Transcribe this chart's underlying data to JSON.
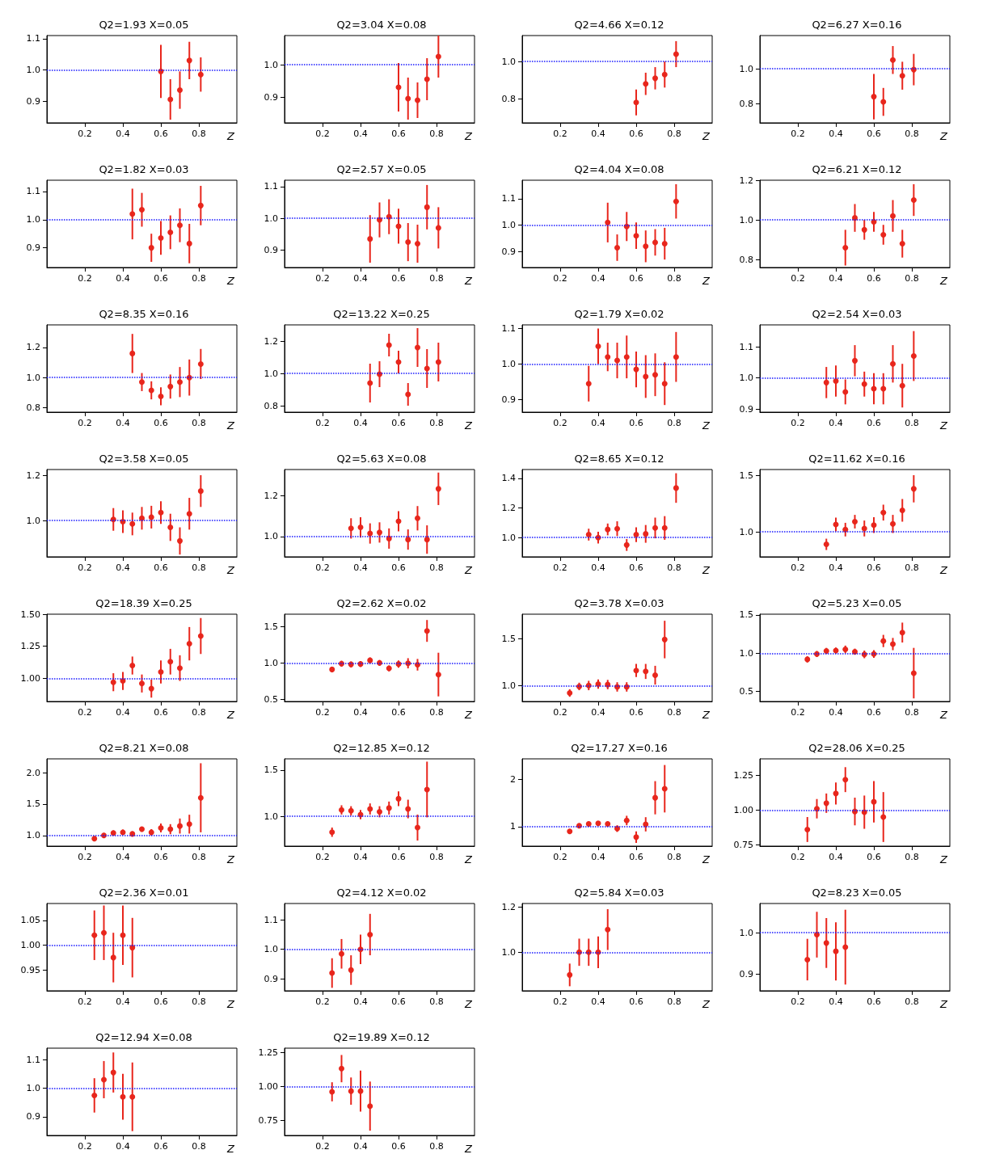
{
  "chart_data": [
    {
      "type": "scatter",
      "title": "Q2=1.93 X=0.05",
      "xlabel": "Z",
      "x": [
        0.6,
        0.65,
        0.7,
        0.75,
        0.81
      ],
      "values": [
        0.995,
        0.905,
        0.935,
        1.03,
        0.985
      ],
      "errors": [
        0.085,
        0.065,
        0.06,
        0.06,
        0.055
      ],
      "color": "#e8261c",
      "marker": "circle",
      "xlim": [
        0,
        1
      ],
      "xticks": [
        0.2,
        0.4,
        0.6,
        0.8
      ],
      "ylim": [
        0.83,
        1.11
      ],
      "yticks": [
        0.9,
        {
          "value": 1,
          "label": "1.0"
        },
        1.1
      ],
      "ref_lines": [
        {
          "axis": "y",
          "value": 1,
          "color": "#1a1aff",
          "line_style": "dotted"
        }
      ]
    },
    {
      "type": "scatter",
      "title": "Q2=3.04 X=0.08",
      "xlabel": "Z",
      "x": [
        0.6,
        0.65,
        0.7,
        0.75,
        0.81
      ],
      "values": [
        0.93,
        0.895,
        0.89,
        0.955,
        1.025
      ],
      "errors": [
        0.075,
        0.065,
        0.055,
        0.065,
        0.065
      ],
      "color": "#e8261c",
      "marker": "circle",
      "xlim": [
        0,
        1
      ],
      "xticks": [
        0.2,
        0.4,
        0.6,
        0.8
      ],
      "ylim": [
        0.82,
        1.09
      ],
      "yticks": [
        0.9,
        {
          "value": 1,
          "label": "1.0"
        }
      ],
      "ref_lines": [
        {
          "axis": "y",
          "value": 1,
          "color": "#1a1aff",
          "line_style": "dotted"
        }
      ]
    },
    {
      "type": "scatter",
      "title": "Q2=4.66 X=0.12",
      "xlabel": "Z",
      "x": [
        0.6,
        0.65,
        0.7,
        0.75,
        0.81
      ],
      "values": [
        0.78,
        0.88,
        0.91,
        0.93,
        1.04
      ],
      "errors": [
        0.07,
        0.06,
        0.06,
        0.07,
        0.07
      ],
      "color": "#e8261c",
      "marker": "circle",
      "xlim": [
        0,
        1
      ],
      "xticks": [
        0.2,
        0.4,
        0.6,
        0.8
      ],
      "ylim": [
        0.67,
        1.14
      ],
      "yticks": [
        0.8,
        {
          "value": 1,
          "label": "1.0"
        }
      ],
      "ref_lines": [
        {
          "axis": "y",
          "value": 1,
          "color": "#1a1aff",
          "line_style": "dotted"
        }
      ]
    },
    {
      "type": "scatter",
      "title": "Q2=6.27 X=0.16",
      "xlabel": "Z",
      "x": [
        0.6,
        0.65,
        0.7,
        0.75,
        0.81
      ],
      "values": [
        0.84,
        0.81,
        1.05,
        0.96,
        0.995
      ],
      "errors": [
        0.13,
        0.08,
        0.08,
        0.08,
        0.09
      ],
      "color": "#e8261c",
      "marker": "circle",
      "xlim": [
        0,
        1
      ],
      "xticks": [
        0.2,
        0.4,
        0.6,
        0.8
      ],
      "ylim": [
        0.69,
        1.19
      ],
      "yticks": [
        0.8,
        {
          "value": 1,
          "label": "1.0"
        }
      ],
      "ref_lines": [
        {
          "axis": "y",
          "value": 1,
          "color": "#1a1aff",
          "line_style": "dotted"
        }
      ]
    },
    {
      "type": "scatter",
      "title": "Q2=1.82 X=0.03",
      "xlabel": "Z",
      "x": [
        0.45,
        0.5,
        0.55,
        0.6,
        0.65,
        0.7,
        0.75,
        0.81
      ],
      "values": [
        1.02,
        1.035,
        0.9,
        0.935,
        0.955,
        0.98,
        0.915,
        1.05
      ],
      "errors": [
        0.09,
        0.06,
        0.05,
        0.06,
        0.06,
        0.06,
        0.07,
        0.07
      ],
      "color": "#e8261c",
      "marker": "circle",
      "xlim": [
        0,
        1
      ],
      "xticks": [
        0.2,
        0.4,
        0.6,
        0.8
      ],
      "ylim": [
        0.83,
        1.14
      ],
      "yticks": [
        0.9,
        {
          "value": 1,
          "label": "1.0"
        },
        1.1
      ],
      "ref_lines": [
        {
          "axis": "y",
          "value": 1,
          "color": "#1a1aff",
          "line_style": "dotted"
        }
      ]
    },
    {
      "type": "scatter",
      "title": "Q2=2.57 X=0.05",
      "xlabel": "Z",
      "x": [
        0.45,
        0.5,
        0.55,
        0.6,
        0.65,
        0.7,
        0.75,
        0.81
      ],
      "values": [
        0.935,
        0.995,
        1.005,
        0.975,
        0.925,
        0.92,
        1.035,
        0.97
      ],
      "errors": [
        0.075,
        0.055,
        0.055,
        0.055,
        0.06,
        0.06,
        0.07,
        0.065
      ],
      "color": "#e8261c",
      "marker": "circle",
      "xlim": [
        0,
        1
      ],
      "xticks": [
        0.2,
        0.4,
        0.6,
        0.8
      ],
      "ylim": [
        0.845,
        1.12
      ],
      "yticks": [
        0.9,
        {
          "value": 1,
          "label": "1.0"
        },
        1.1
      ],
      "ref_lines": [
        {
          "axis": "y",
          "value": 1,
          "color": "#1a1aff",
          "line_style": "dotted"
        }
      ]
    },
    {
      "type": "scatter",
      "title": "Q2=4.04 X=0.08",
      "xlabel": "Z",
      "x": [
        0.45,
        0.5,
        0.55,
        0.6,
        0.65,
        0.7,
        0.75,
        0.81
      ],
      "values": [
        1.01,
        0.915,
        0.995,
        0.96,
        0.92,
        0.935,
        0.93,
        1.09
      ],
      "errors": [
        0.075,
        0.05,
        0.055,
        0.05,
        0.06,
        0.05,
        0.06,
        0.065
      ],
      "color": "#e8261c",
      "marker": "circle",
      "xlim": [
        0,
        1
      ],
      "xticks": [
        0.2,
        0.4,
        0.6,
        0.8
      ],
      "ylim": [
        0.84,
        1.17
      ],
      "yticks": [
        0.9,
        {
          "value": 1,
          "label": "1.0"
        },
        1.1
      ],
      "ref_lines": [
        {
          "axis": "y",
          "value": 1,
          "color": "#1a1aff",
          "line_style": "dotted"
        }
      ]
    },
    {
      "type": "scatter",
      "title": "Q2=6.21 X=0.12",
      "xlabel": "Z",
      "x": [
        0.45,
        0.5,
        0.55,
        0.6,
        0.65,
        0.7,
        0.75,
        0.81
      ],
      "values": [
        0.86,
        1.01,
        0.95,
        0.99,
        0.925,
        1.02,
        0.88,
        1.1
      ],
      "errors": [
        0.09,
        0.07,
        0.05,
        0.05,
        0.05,
        0.08,
        0.07,
        0.08
      ],
      "color": "#e8261c",
      "marker": "circle",
      "xlim": [
        0,
        1
      ],
      "xticks": [
        0.2,
        0.4,
        0.6,
        0.8
      ],
      "ylim": [
        0.76,
        1.2
      ],
      "yticks": [
        0.8,
        {
          "value": 1,
          "label": "1.0"
        },
        1.2
      ],
      "ref_lines": [
        {
          "axis": "y",
          "value": 1,
          "color": "#1a1aff",
          "line_style": "dotted"
        }
      ]
    },
    {
      "type": "scatter",
      "title": "Q2=8.35 X=0.16",
      "xlabel": "Z",
      "x": [
        0.45,
        0.5,
        0.55,
        0.6,
        0.65,
        0.7,
        0.75,
        0.81
      ],
      "values": [
        1.16,
        0.97,
        0.915,
        0.875,
        0.94,
        0.97,
        1.0,
        1.09
      ],
      "errors": [
        0.13,
        0.06,
        0.06,
        0.06,
        0.08,
        0.1,
        0.12,
        0.1
      ],
      "color": "#e8261c",
      "marker": "circle",
      "xlim": [
        0,
        1
      ],
      "xticks": [
        0.2,
        0.4,
        0.6,
        0.8
      ],
      "ylim": [
        0.77,
        1.35
      ],
      "yticks": [
        0.8,
        {
          "value": 1,
          "label": "1.0"
        },
        1.2
      ],
      "ref_lines": [
        {
          "axis": "y",
          "value": 1,
          "color": "#1a1aff",
          "line_style": "dotted"
        }
      ]
    },
    {
      "type": "scatter",
      "title": "Q2=13.22 X=0.25",
      "xlabel": "Z",
      "x": [
        0.45,
        0.5,
        0.55,
        0.6,
        0.65,
        0.7,
        0.75,
        0.81
      ],
      "values": [
        0.94,
        0.995,
        1.175,
        1.07,
        0.87,
        1.16,
        1.03,
        1.07
      ],
      "errors": [
        0.12,
        0.08,
        0.07,
        0.07,
        0.07,
        0.12,
        0.12,
        0.12
      ],
      "color": "#e8261c",
      "marker": "circle",
      "xlim": [
        0,
        1
      ],
      "xticks": [
        0.2,
        0.4,
        0.6,
        0.8
      ],
      "ylim": [
        0.76,
        1.3
      ],
      "yticks": [
        0.8,
        {
          "value": 1,
          "label": "1.0"
        },
        1.2
      ],
      "ref_lines": [
        {
          "axis": "y",
          "value": 1,
          "color": "#1a1aff",
          "line_style": "dotted"
        }
      ]
    },
    {
      "type": "scatter",
      "title": "Q2=1.79 X=0.02",
      "xlabel": "Z",
      "x": [
        0.35,
        0.4,
        0.45,
        0.5,
        0.55,
        0.6,
        0.65,
        0.7,
        0.75,
        0.81
      ],
      "values": [
        0.945,
        1.05,
        1.02,
        1.01,
        1.02,
        0.985,
        0.965,
        0.97,
        0.945,
        1.02
      ],
      "errors": [
        0.05,
        0.05,
        0.04,
        0.05,
        0.06,
        0.05,
        0.06,
        0.06,
        0.06,
        0.07
      ],
      "color": "#e8261c",
      "marker": "circle",
      "xlim": [
        0,
        1
      ],
      "xticks": [
        0.2,
        0.4,
        0.6,
        0.8
      ],
      "ylim": [
        0.865,
        1.11
      ],
      "yticks": [
        0.9,
        {
          "value": 1,
          "label": "1.0"
        },
        1.1
      ],
      "ref_lines": [
        {
          "axis": "y",
          "value": 1,
          "color": "#1a1aff",
          "line_style": "dotted"
        }
      ]
    },
    {
      "type": "scatter",
      "title": "Q2=2.54 X=0.03",
      "xlabel": "Z",
      "x": [
        0.35,
        0.4,
        0.45,
        0.5,
        0.55,
        0.6,
        0.65,
        0.7,
        0.75,
        0.81
      ],
      "values": [
        0.985,
        0.99,
        0.955,
        1.055,
        0.98,
        0.965,
        0.965,
        1.045,
        0.975,
        1.07
      ],
      "errors": [
        0.05,
        0.05,
        0.04,
        0.05,
        0.04,
        0.05,
        0.05,
        0.06,
        0.07,
        0.08
      ],
      "color": "#e8261c",
      "marker": "circle",
      "xlim": [
        0,
        1
      ],
      "xticks": [
        0.2,
        0.4,
        0.6,
        0.8
      ],
      "ylim": [
        0.89,
        1.17
      ],
      "yticks": [
        0.9,
        {
          "value": 1,
          "label": "1.0"
        },
        1.1
      ],
      "ref_lines": [
        {
          "axis": "y",
          "value": 1,
          "color": "#1a1aff",
          "line_style": "dotted"
        }
      ]
    },
    {
      "type": "scatter",
      "title": "Q2=3.58 X=0.05",
      "xlabel": "Z",
      "x": [
        0.35,
        0.4,
        0.45,
        0.5,
        0.55,
        0.6,
        0.65,
        0.7,
        0.75,
        0.81
      ],
      "values": [
        1.005,
        0.995,
        0.985,
        1.01,
        1.015,
        1.035,
        0.97,
        0.91,
        1.03,
        1.13
      ],
      "errors": [
        0.05,
        0.05,
        0.05,
        0.05,
        0.05,
        0.05,
        0.06,
        0.06,
        0.07,
        0.07
      ],
      "color": "#e8261c",
      "marker": "circle",
      "xlim": [
        0,
        1
      ],
      "xticks": [
        0.2,
        0.4,
        0.6,
        0.8
      ],
      "ylim": [
        0.84,
        1.225
      ],
      "yticks": [
        {
          "value": 1,
          "label": "1.0"
        },
        1.2
      ],
      "ref_lines": [
        {
          "axis": "y",
          "value": 1,
          "color": "#1a1aff",
          "line_style": "dotted"
        }
      ]
    },
    {
      "type": "scatter",
      "title": "Q2=5.63 X=0.08",
      "xlabel": "Z",
      "x": [
        0.35,
        0.4,
        0.45,
        0.5,
        0.55,
        0.6,
        0.65,
        0.7,
        0.75,
        0.81
      ],
      "values": [
        1.04,
        1.045,
        1.015,
        1.02,
        0.99,
        1.075,
        0.985,
        1.09,
        0.985,
        1.235
      ],
      "errors": [
        0.05,
        0.05,
        0.05,
        0.05,
        0.05,
        0.05,
        0.05,
        0.06,
        0.07,
        0.08
      ],
      "color": "#e8261c",
      "marker": "circle",
      "xlim": [
        0,
        1
      ],
      "xticks": [
        0.2,
        0.4,
        0.6,
        0.8
      ],
      "ylim": [
        0.9,
        1.33
      ],
      "yticks": [
        {
          "value": 1,
          "label": "1.0"
        },
        1.2
      ],
      "ref_lines": [
        {
          "axis": "y",
          "value": 1,
          "color": "#1a1aff",
          "line_style": "dotted"
        }
      ]
    },
    {
      "type": "scatter",
      "title": "Q2=8.65 X=0.12",
      "xlabel": "Z",
      "x": [
        0.35,
        0.4,
        0.45,
        0.5,
        0.55,
        0.6,
        0.65,
        0.7,
        0.75,
        0.81
      ],
      "values": [
        1.02,
        1.0,
        1.055,
        1.06,
        0.95,
        1.02,
        1.025,
        1.065,
        1.065,
        1.335
      ],
      "errors": [
        0.04,
        0.04,
        0.04,
        0.05,
        0.04,
        0.05,
        0.06,
        0.07,
        0.08,
        0.1
      ],
      "color": "#e8261c",
      "marker": "circle",
      "xlim": [
        0,
        1
      ],
      "xticks": [
        0.2,
        0.4,
        0.6,
        0.8
      ],
      "ylim": [
        0.87,
        1.46
      ],
      "yticks": [
        {
          "value": 1,
          "label": "1.0"
        },
        1.2,
        1.4
      ],
      "ref_lines": [
        {
          "axis": "y",
          "value": 1,
          "color": "#1a1aff",
          "line_style": "dotted"
        }
      ]
    },
    {
      "type": "scatter",
      "title": "Q2=11.62 X=0.16",
      "xlabel": "Z",
      "x": [
        0.35,
        0.4,
        0.45,
        0.5,
        0.55,
        0.6,
        0.65,
        0.7,
        0.75,
        0.81
      ],
      "values": [
        0.89,
        1.065,
        1.02,
        1.09,
        1.03,
        1.06,
        1.17,
        1.07,
        1.19,
        1.38
      ],
      "errors": [
        0.05,
        0.06,
        0.06,
        0.06,
        0.07,
        0.07,
        0.07,
        0.08,
        0.1,
        0.12
      ],
      "color": "#e8261c",
      "marker": "circle",
      "xlim": [
        0,
        1
      ],
      "xticks": [
        0.2,
        0.4,
        0.6,
        0.8
      ],
      "ylim": [
        0.78,
        1.55
      ],
      "yticks": [
        {
          "value": 1,
          "label": "1.0"
        },
        1.5
      ],
      "ref_lines": [
        {
          "axis": "y",
          "value": 1,
          "color": "#1a1aff",
          "line_style": "dotted"
        }
      ]
    },
    {
      "type": "scatter",
      "title": "Q2=18.39 X=0.25",
      "xlabel": "Z",
      "x": [
        0.35,
        0.4,
        0.45,
        0.5,
        0.55,
        0.6,
        0.65,
        0.7,
        0.75,
        0.81
      ],
      "values": [
        0.97,
        0.98,
        1.1,
        0.96,
        0.92,
        1.05,
        1.13,
        1.08,
        1.27,
        1.33
      ],
      "errors": [
        0.07,
        0.07,
        0.07,
        0.07,
        0.07,
        0.09,
        0.1,
        0.1,
        0.13,
        0.14
      ],
      "color": "#e8261c",
      "marker": "circle",
      "xlim": [
        0,
        1
      ],
      "xticks": [
        0.2,
        0.4,
        0.6,
        0.8
      ],
      "ylim": [
        0.82,
        1.5
      ],
      "yticks": [
        {
          "value": 1,
          "label": "1.00"
        },
        1.25,
        {
          "value": 1.5,
          "label": "1.50"
        }
      ],
      "ref_lines": [
        {
          "axis": "y",
          "value": 1,
          "color": "#1a1aff",
          "line_style": "dotted"
        }
      ]
    },
    {
      "type": "scatter",
      "title": "Q2=2.62 X=0.02",
      "xlabel": "Z",
      "x": [
        0.25,
        0.3,
        0.35,
        0.4,
        0.45,
        0.5,
        0.55,
        0.6,
        0.65,
        0.7,
        0.75,
        0.81
      ],
      "values": [
        0.91,
        0.99,
        0.98,
        0.985,
        1.035,
        1.0,
        0.925,
        0.985,
        0.995,
        0.975,
        1.44,
        0.84
      ],
      "errors": [
        0.03,
        0.04,
        0.04,
        0.04,
        0.04,
        0.04,
        0.04,
        0.05,
        0.07,
        0.08,
        0.15,
        0.3
      ],
      "color": "#e8261c",
      "marker": "circle",
      "xlim": [
        0,
        1
      ],
      "xticks": [
        0.2,
        0.4,
        0.6,
        0.8
      ],
      "ylim": [
        0.47,
        1.67
      ],
      "yticks": [
        0.5,
        {
          "value": 1,
          "label": "1.0"
        },
        1.5
      ],
      "ref_lines": [
        {
          "axis": "y",
          "value": 1,
          "color": "#1a1aff",
          "line_style": "dotted"
        }
      ]
    },
    {
      "type": "scatter",
      "title": "Q2=3.78 X=0.03",
      "xlabel": "Z",
      "x": [
        0.25,
        0.3,
        0.35,
        0.4,
        0.45,
        0.5,
        0.55,
        0.6,
        0.65,
        0.7,
        0.75
      ],
      "values": [
        0.92,
        0.99,
        1.0,
        1.015,
        1.01,
        0.985,
        0.985,
        1.16,
        1.15,
        1.11,
        1.49
      ],
      "errors": [
        0.04,
        0.04,
        0.05,
        0.05,
        0.05,
        0.05,
        0.05,
        0.07,
        0.08,
        0.1,
        0.2
      ],
      "color": "#e8261c",
      "marker": "circle",
      "xlim": [
        0,
        1
      ],
      "xticks": [
        0.2,
        0.4,
        0.6,
        0.8
      ],
      "ylim": [
        0.83,
        1.76
      ],
      "yticks": [
        {
          "value": 1,
          "label": "1.0"
        },
        1.5
      ],
      "ref_lines": [
        {
          "axis": "y",
          "value": 1,
          "color": "#1a1aff",
          "line_style": "dotted"
        }
      ]
    },
    {
      "type": "scatter",
      "title": "Q2=5.23 X=0.05",
      "xlabel": "Z",
      "x": [
        0.25,
        0.3,
        0.35,
        0.4,
        0.45,
        0.5,
        0.55,
        0.6,
        0.65,
        0.7,
        0.75,
        0.81
      ],
      "values": [
        0.92,
        0.99,
        1.03,
        1.035,
        1.05,
        1.02,
        0.985,
        0.99,
        1.16,
        1.12,
        1.27,
        0.74
      ],
      "errors": [
        0.04,
        0.04,
        0.04,
        0.04,
        0.05,
        0.04,
        0.05,
        0.05,
        0.08,
        0.08,
        0.13,
        0.33
      ],
      "color": "#e8261c",
      "marker": "circle",
      "xlim": [
        0,
        1
      ],
      "xticks": [
        0.2,
        0.4,
        0.6,
        0.8
      ],
      "ylim": [
        0.37,
        1.51
      ],
      "yticks": [
        0.5,
        {
          "value": 1,
          "label": "1.0"
        },
        1.5
      ],
      "ref_lines": [
        {
          "axis": "y",
          "value": 1,
          "color": "#1a1aff",
          "line_style": "dotted"
        }
      ]
    },
    {
      "type": "scatter",
      "title": "Q2=8.21 X=0.08",
      "xlabel": "Z",
      "x": [
        0.25,
        0.3,
        0.35,
        0.4,
        0.45,
        0.5,
        0.55,
        0.6,
        0.65,
        0.7,
        0.75,
        0.81
      ],
      "values": [
        0.95,
        1.0,
        1.04,
        1.05,
        1.025,
        1.1,
        1.05,
        1.12,
        1.1,
        1.15,
        1.18,
        1.6
      ],
      "errors": [
        0.04,
        0.04,
        0.04,
        0.04,
        0.04,
        0.04,
        0.05,
        0.07,
        0.08,
        0.12,
        0.15,
        0.55
      ],
      "color": "#e8261c",
      "marker": "circle",
      "xlim": [
        0,
        1
      ],
      "xticks": [
        0.2,
        0.4,
        0.6,
        0.8
      ],
      "ylim": [
        0.83,
        2.22
      ],
      "yticks": [
        {
          "value": 1,
          "label": "1.0"
        },
        1.5,
        {
          "value": 2,
          "label": "2.0"
        }
      ],
      "ref_lines": [
        {
          "axis": "y",
          "value": 1,
          "color": "#1a1aff",
          "line_style": "dotted"
        }
      ]
    },
    {
      "type": "scatter",
      "title": "Q2=12.85 X=0.12",
      "xlabel": "Z",
      "x": [
        0.25,
        0.3,
        0.35,
        0.4,
        0.45,
        0.5,
        0.55,
        0.6,
        0.65,
        0.7,
        0.75
      ],
      "values": [
        0.83,
        1.07,
        1.06,
        1.02,
        1.08,
        1.05,
        1.09,
        1.19,
        1.08,
        0.88,
        1.29
      ],
      "errors": [
        0.05,
        0.05,
        0.05,
        0.05,
        0.06,
        0.06,
        0.07,
        0.08,
        0.1,
        0.14,
        0.3
      ],
      "color": "#e8261c",
      "marker": "circle",
      "xlim": [
        0,
        1
      ],
      "xticks": [
        0.2,
        0.4,
        0.6,
        0.8
      ],
      "ylim": [
        0.68,
        1.62
      ],
      "yticks": [
        {
          "value": 1,
          "label": "1.0"
        },
        1.5
      ],
      "ref_lines": [
        {
          "axis": "y",
          "value": 1,
          "color": "#1a1aff",
          "line_style": "dotted"
        }
      ]
    },
    {
      "type": "scatter",
      "title": "Q2=17.27 X=0.16",
      "xlabel": "Z",
      "x": [
        0.25,
        0.3,
        0.35,
        0.4,
        0.45,
        0.5,
        0.55,
        0.6,
        0.65,
        0.7,
        0.75
      ],
      "values": [
        0.9,
        1.02,
        1.06,
        1.07,
        1.06,
        0.96,
        1.13,
        0.78,
        1.05,
        1.61,
        1.8
      ],
      "errors": [
        0.05,
        0.05,
        0.05,
        0.05,
        0.05,
        0.07,
        0.1,
        0.12,
        0.15,
        0.35,
        0.5
      ],
      "color": "#e8261c",
      "marker": "circle",
      "xlim": [
        0,
        1
      ],
      "xticks": [
        0.2,
        0.4,
        0.6,
        0.8
      ],
      "ylim": [
        0.59,
        2.43
      ],
      "yticks": [
        1,
        2
      ],
      "ref_lines": [
        {
          "axis": "y",
          "value": 1,
          "color": "#1a1aff",
          "line_style": "dotted"
        }
      ]
    },
    {
      "type": "scatter",
      "title": "Q2=28.06 X=0.25",
      "xlabel": "Z",
      "x": [
        0.25,
        0.3,
        0.35,
        0.4,
        0.45,
        0.5,
        0.55,
        0.6,
        0.65
      ],
      "values": [
        0.86,
        1.01,
        1.05,
        1.12,
        1.22,
        0.99,
        0.985,
        1.06,
        0.95
      ],
      "errors": [
        0.09,
        0.07,
        0.07,
        0.08,
        0.09,
        0.1,
        0.12,
        0.15,
        0.18
      ],
      "color": "#e8261c",
      "marker": "circle",
      "xlim": [
        0,
        1
      ],
      "xticks": [
        0.2,
        0.4,
        0.6,
        0.8
      ],
      "ylim": [
        0.74,
        1.37
      ],
      "yticks": [
        0.75,
        {
          "value": 1,
          "label": "1.00"
        },
        1.25
      ],
      "ref_lines": [
        {
          "axis": "y",
          "value": 1,
          "color": "#1a1aff",
          "line_style": "dotted"
        }
      ]
    },
    {
      "type": "scatter",
      "title": "Q2=2.36 X=0.01",
      "xlabel": "Z",
      "x": [
        0.25,
        0.3,
        0.35,
        0.4,
        0.45
      ],
      "values": [
        1.02,
        1.025,
        0.975,
        1.02,
        0.995
      ],
      "errors": [
        0.05,
        0.055,
        0.05,
        0.06,
        0.06
      ],
      "color": "#e8261c",
      "marker": "circle",
      "xlim": [
        0,
        1
      ],
      "xticks": [
        0.2,
        0.4,
        0.6,
        0.8
      ],
      "ylim": [
        0.908,
        1.084
      ],
      "yticks": [
        0.95,
        {
          "value": 1,
          "label": "1.00"
        },
        1.05
      ],
      "ref_lines": [
        {
          "axis": "y",
          "value": 1,
          "color": "#1a1aff",
          "line_style": "dotted"
        }
      ]
    },
    {
      "type": "scatter",
      "title": "Q2=4.12 X=0.02",
      "xlabel": "Z",
      "x": [
        0.25,
        0.3,
        0.35,
        0.4,
        0.45
      ],
      "values": [
        0.92,
        0.985,
        0.93,
        1.0,
        1.05
      ],
      "errors": [
        0.05,
        0.05,
        0.05,
        0.05,
        0.07
      ],
      "color": "#e8261c",
      "marker": "circle",
      "xlim": [
        0,
        1
      ],
      "xticks": [
        0.2,
        0.4,
        0.6,
        0.8
      ],
      "ylim": [
        0.86,
        1.155
      ],
      "yticks": [
        0.9,
        {
          "value": 1,
          "label": "1.0"
        },
        1.1
      ],
      "ref_lines": [
        {
          "axis": "y",
          "value": 1,
          "color": "#1a1aff",
          "line_style": "dotted"
        }
      ]
    },
    {
      "type": "scatter",
      "title": "Q2=5.84 X=0.03",
      "xlabel": "Z",
      "x": [
        0.25,
        0.3,
        0.35,
        0.4,
        0.45
      ],
      "values": [
        0.9,
        1.0,
        1.0,
        1.0,
        1.1
      ],
      "errors": [
        0.05,
        0.06,
        0.06,
        0.07,
        0.09
      ],
      "color": "#e8261c",
      "marker": "circle",
      "xlim": [
        0,
        1
      ],
      "xticks": [
        0.2,
        0.4,
        0.6,
        0.8
      ],
      "ylim": [
        0.83,
        1.215
      ],
      "yticks": [
        {
          "value": 1,
          "label": "1.0"
        },
        1.2
      ],
      "ref_lines": [
        {
          "axis": "y",
          "value": 1,
          "color": "#1a1aff",
          "line_style": "dotted"
        }
      ]
    },
    {
      "type": "scatter",
      "title": "Q2=8.23 X=0.05",
      "xlabel": "Z",
      "x": [
        0.25,
        0.3,
        0.35,
        0.4,
        0.45
      ],
      "values": [
        0.935,
        0.995,
        0.975,
        0.955,
        0.965
      ],
      "errors": [
        0.05,
        0.055,
        0.06,
        0.07,
        0.09
      ],
      "color": "#e8261c",
      "marker": "circle",
      "xlim": [
        0,
        1
      ],
      "xticks": [
        0.2,
        0.4,
        0.6,
        0.8
      ],
      "ylim": [
        0.86,
        1.07
      ],
      "yticks": [
        0.9,
        {
          "value": 1,
          "label": "1.0"
        }
      ],
      "ref_lines": [
        {
          "axis": "y",
          "value": 1,
          "color": "#1a1aff",
          "line_style": "dotted"
        }
      ]
    },
    {
      "type": "scatter",
      "title": "Q2=12.94 X=0.08",
      "xlabel": "Z",
      "x": [
        0.25,
        0.3,
        0.35,
        0.4,
        0.45
      ],
      "values": [
        0.975,
        1.03,
        1.055,
        0.97,
        0.97
      ],
      "errors": [
        0.06,
        0.065,
        0.07,
        0.08,
        0.12
      ],
      "color": "#e8261c",
      "marker": "circle",
      "xlim": [
        0,
        1
      ],
      "xticks": [
        0.2,
        0.4,
        0.6,
        0.8
      ],
      "ylim": [
        0.835,
        1.14
      ],
      "yticks": [
        0.9,
        {
          "value": 1,
          "label": "1.0"
        },
        1.1
      ],
      "ref_lines": [
        {
          "axis": "y",
          "value": 1,
          "color": "#1a1aff",
          "line_style": "dotted"
        }
      ]
    },
    {
      "type": "scatter",
      "title": "Q2=19.89 X=0.12",
      "xlabel": "Z",
      "x": [
        0.25,
        0.3,
        0.35,
        0.4,
        0.45
      ],
      "values": [
        0.96,
        1.13,
        0.965,
        0.965,
        0.855
      ],
      "errors": [
        0.07,
        0.1,
        0.1,
        0.15,
        0.18
      ],
      "color": "#e8261c",
      "marker": "circle",
      "xlim": [
        0,
        1
      ],
      "xticks": [
        0.2,
        0.4,
        0.6,
        0.8
      ],
      "ylim": [
        0.64,
        1.28
      ],
      "yticks": [
        0.75,
        {
          "value": 1,
          "label": "1.00"
        },
        1.25
      ],
      "ref_lines": [
        {
          "axis": "y",
          "value": 1,
          "color": "#1a1aff",
          "line_style": "dotted"
        }
      ]
    }
  ]
}
